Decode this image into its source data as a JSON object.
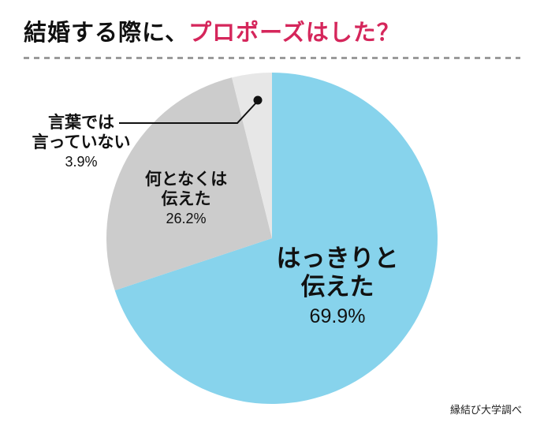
{
  "title": {
    "black": "結婚する際に、",
    "red": "プロポーズはした？"
  },
  "source": "縁結び大学調べ",
  "colors": {
    "accent_red": "#d5265b",
    "dash_gray": "#9b9b9b",
    "text": "#111111"
  },
  "chart_data": {
    "type": "pie",
    "title": "結婚する際に、プロポーズはした？",
    "start_angle_deg": 0,
    "direction": "clockwise",
    "legend": "none",
    "labels_on_chart": true,
    "slices": [
      {
        "label": "はっきりと伝えた",
        "value": 69.9,
        "pct_label": "69.9%",
        "color": "#87d3ec"
      },
      {
        "label": "何となくは伝えた",
        "value": 26.2,
        "pct_label": "26.2%",
        "color": "#cccccc"
      },
      {
        "label": "言葉では言っていない",
        "value": 3.9,
        "pct_label": "3.9%",
        "color": "#e7e7e7"
      }
    ]
  },
  "callouts": {
    "blue": {
      "line1": "はっきりと",
      "line2": "伝えた"
    },
    "gray": {
      "line1": "何となくは",
      "line2": "伝えた"
    },
    "sliver": {
      "line1": "言葉では",
      "line2": "言っていない"
    }
  }
}
